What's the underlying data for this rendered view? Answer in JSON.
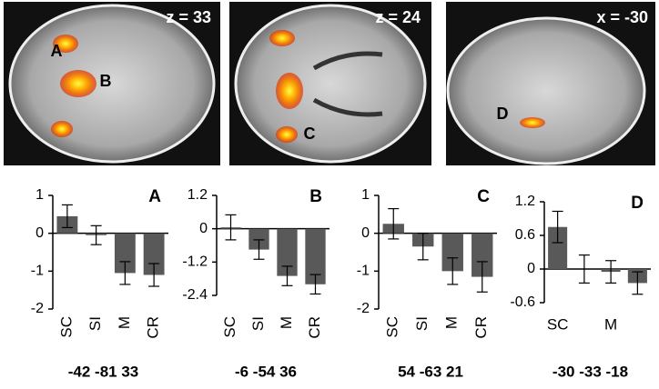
{
  "images": [
    {
      "label": "z = 33",
      "markers": [
        "A",
        "B"
      ]
    },
    {
      "label": "z = 24",
      "markers": [
        "C"
      ]
    },
    {
      "label": "x = -30",
      "markers": [
        "D"
      ]
    }
  ],
  "chart_data": [
    {
      "type": "bar",
      "panel": "A",
      "coordinates": "-42 -81 33",
      "categories": [
        "SC",
        "SI",
        "M",
        "CR"
      ],
      "values": [
        0.45,
        -0.05,
        -1.05,
        -1.1
      ],
      "errors": [
        0.3,
        0.25,
        0.3,
        0.3
      ],
      "color": "#595959",
      "ylim": [
        -2,
        1
      ],
      "yticks": [
        -2,
        -1,
        0,
        1
      ],
      "rotate_labels": true
    },
    {
      "type": "bar",
      "panel": "B",
      "coordinates": "-6 -54 36",
      "categories": [
        "SC",
        "SI",
        "M",
        "CR"
      ],
      "values": [
        0.05,
        -0.75,
        -1.7,
        -2.0
      ],
      "errors": [
        0.45,
        0.35,
        0.35,
        0.35
      ],
      "color": "#595959",
      "ylim": [
        -2.4,
        1.2
      ],
      "yticks": [
        -2.4,
        -1.2,
        0,
        1.2
      ],
      "rotate_labels": true
    },
    {
      "type": "bar",
      "panel": "C",
      "coordinates": "54 -63 21",
      "categories": [
        "SC",
        "SI",
        "M",
        "CR"
      ],
      "values": [
        0.25,
        -0.35,
        -1.0,
        -1.15
      ],
      "errors": [
        0.4,
        0.35,
        0.35,
        0.4
      ],
      "color": "#595959",
      "ylim": [
        -2,
        1
      ],
      "yticks": [
        -2,
        -1,
        0,
        1
      ],
      "rotate_labels": true
    },
    {
      "type": "bar",
      "panel": "D",
      "coordinates": "-30 -33 -18",
      "categories": [
        "SC",
        null,
        "M",
        null
      ],
      "values": [
        0.75,
        0.0,
        -0.05,
        -0.25
      ],
      "errors": [
        0.28,
        0.25,
        0.2,
        0.2
      ],
      "color": "#595959",
      "ylim": [
        -0.6,
        1.2
      ],
      "yticks": [
        -0.6,
        0,
        0.6,
        1.2
      ],
      "rotate_labels": false
    }
  ]
}
